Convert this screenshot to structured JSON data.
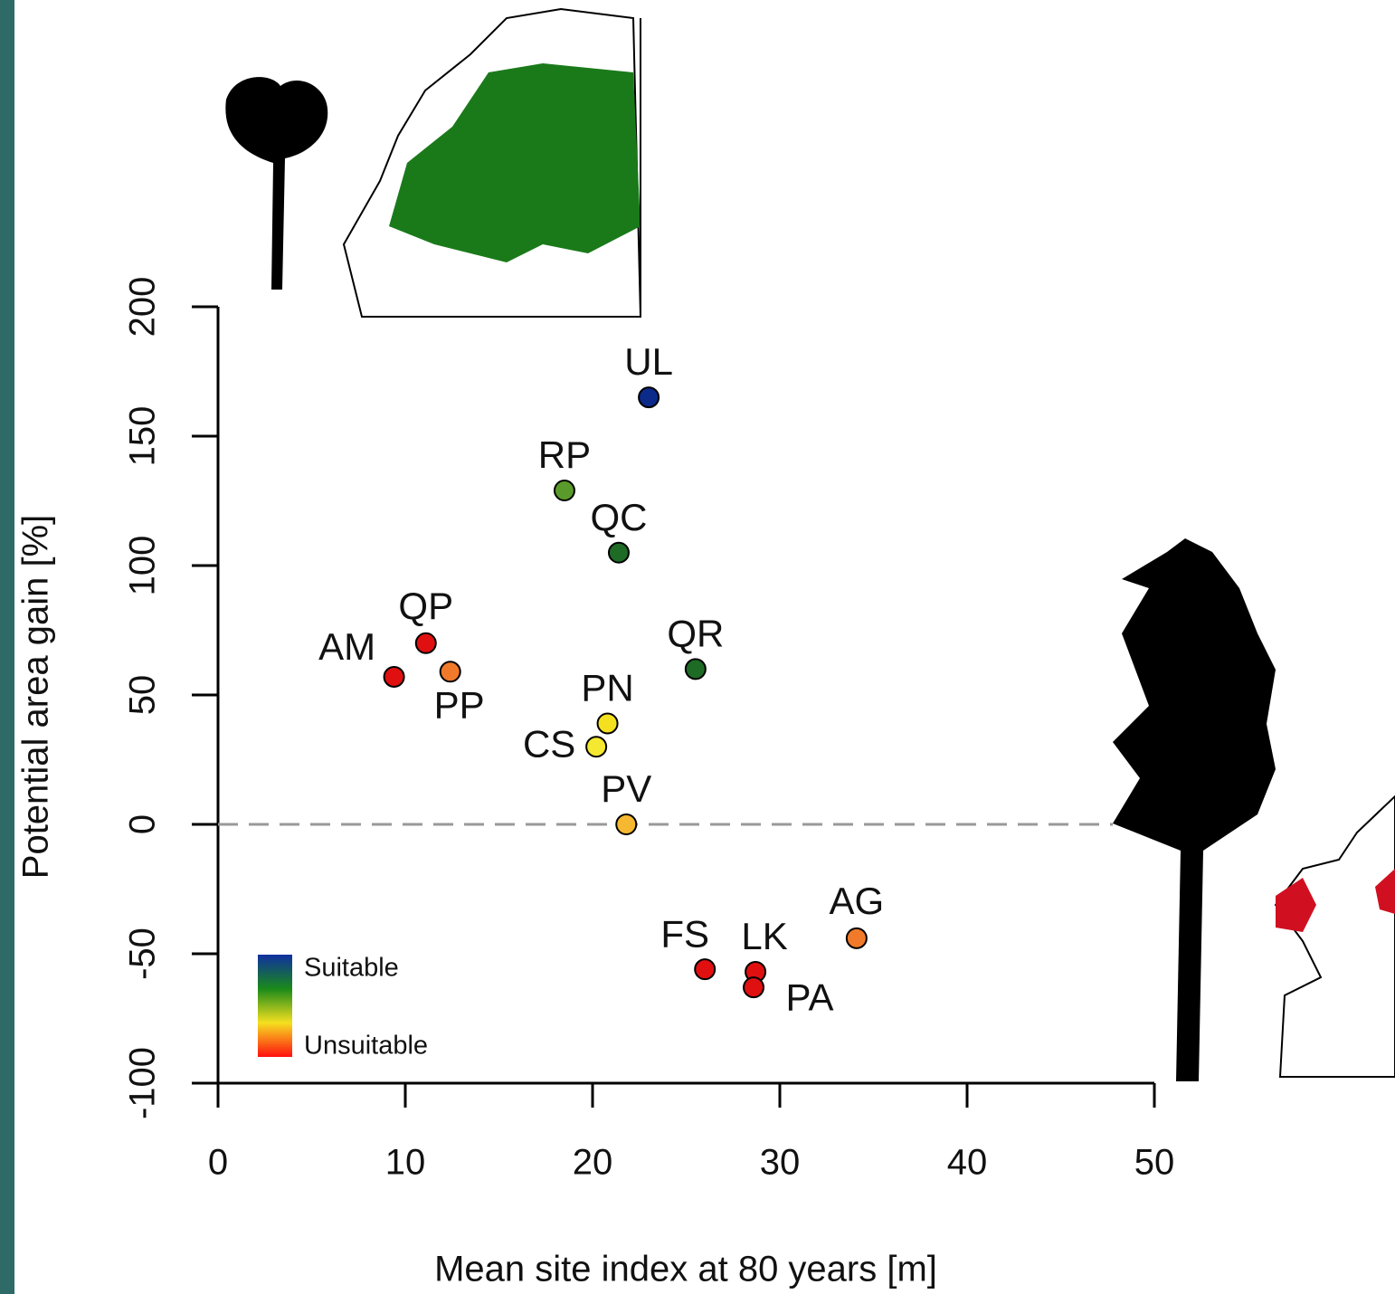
{
  "chart_data": {
    "type": "scatter",
    "x_label": "Mean site index at 80 years [m]",
    "y_label": "Potential area gain [%]",
    "labels": [
      "UL",
      "RP",
      "QC",
      "QR",
      "QP",
      "AM",
      "PP",
      "PN",
      "CS",
      "PV",
      "FS",
      "LK",
      "PA",
      "AG"
    ],
    "x": [
      23.0,
      18.5,
      21.4,
      25.5,
      11.1,
      9.4,
      12.4,
      20.8,
      20.2,
      21.8,
      26.0,
      28.7,
      28.6,
      34.1
    ],
    "values": [
      165,
      129,
      105,
      60,
      70,
      57,
      59,
      39,
      30,
      0,
      -56,
      -57,
      -63,
      -44
    ],
    "colors": [
      "#0b2a8a",
      "#5a9a2a",
      "#1e6b26",
      "#1e6b26",
      "#e01010",
      "#e01010",
      "#f07a2a",
      "#f5e020",
      "#f5e830",
      "#f5b830",
      "#e01010",
      "#e01010",
      "#e01010",
      "#f07a2a"
    ],
    "xlim": [
      0,
      50
    ],
    "xticks": [
      0,
      10,
      20,
      30,
      40,
      50
    ],
    "ylim": [
      -100,
      200
    ],
    "yticks": [
      -100,
      -50,
      0,
      50,
      100,
      150,
      200
    ],
    "reference_line": 0,
    "colorbar_labels": [
      "Suitable",
      "Unsuitable"
    ],
    "colorbar_colors": [
      "#1030a0",
      "#1a8a1a",
      "#f5e020",
      "#ff1010"
    ]
  }
}
